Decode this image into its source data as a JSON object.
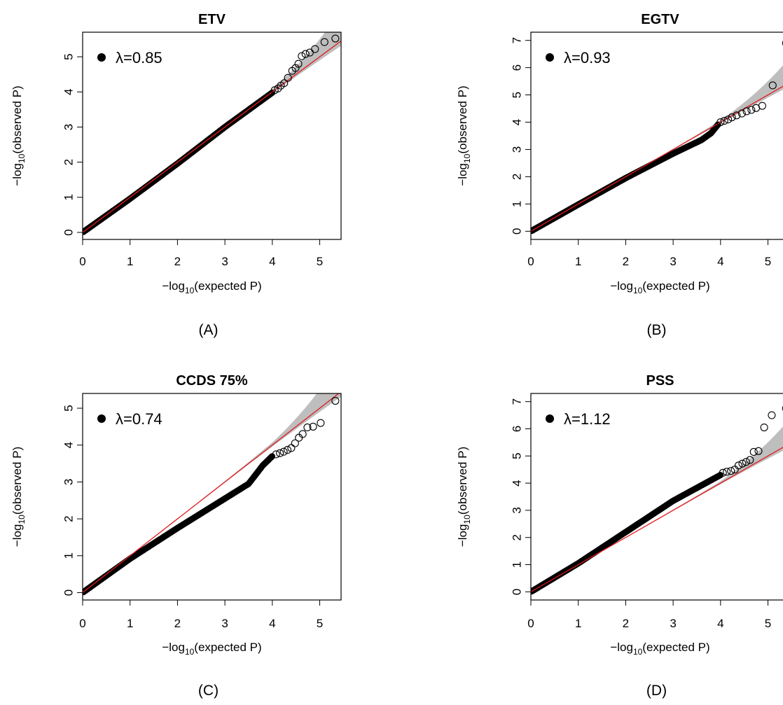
{
  "figure": {
    "panels": [
      {
        "id": "A",
        "title": "ETV",
        "lambda_text": "λ=0.85",
        "caption": "(A)"
      },
      {
        "id": "B",
        "title": "EGTV",
        "lambda_text": "λ=0.93",
        "caption": "(B)"
      },
      {
        "id": "C",
        "title": "CCDS 75%",
        "lambda_text": "λ=0.74",
        "caption": "(C)"
      },
      {
        "id": "D",
        "title": "PSS",
        "lambda_text": "λ=1.12",
        "caption": "(D)"
      }
    ],
    "axis_labels": {
      "x": "−log10(expected P)",
      "y": "−log10(observed P)"
    }
  },
  "chart_data": [
    {
      "type": "scatter",
      "title": "ETV",
      "xlabel": "−log10(expected P)",
      "ylabel": "−log10(observed P)",
      "xlim": [
        0,
        5.45
      ],
      "ylim": [
        -0.2,
        5.7
      ],
      "xticks": [
        0,
        1,
        2,
        3,
        4,
        5
      ],
      "yticks": [
        0,
        1,
        2,
        3,
        4,
        5
      ],
      "lambda": 0.85,
      "legend": "λ=0.85",
      "colors": {
        "points": "#000000",
        "reference_line": "#e41a1c",
        "confidence_band": "#bebebe"
      },
      "bulk_curve": [
        [
          0,
          0
        ],
        [
          1,
          0.96
        ],
        [
          2,
          1.96
        ],
        [
          3,
          3.0
        ],
        [
          4,
          3.98
        ]
      ],
      "outlier_points": [
        [
          4.05,
          4.05
        ],
        [
          4.12,
          4.1
        ],
        [
          4.18,
          4.18
        ],
        [
          4.25,
          4.25
        ],
        [
          4.33,
          4.4
        ],
        [
          4.42,
          4.6
        ],
        [
          4.49,
          4.68
        ],
        [
          4.55,
          4.8
        ],
        [
          4.62,
          5.02
        ],
        [
          4.7,
          5.08
        ],
        [
          4.79,
          5.12
        ],
        [
          4.9,
          5.22
        ],
        [
          5.1,
          5.42
        ],
        [
          5.33,
          5.52
        ]
      ]
    },
    {
      "type": "scatter",
      "title": "EGTV",
      "xlabel": "−log10(expected P)",
      "ylabel": "−log10(observed P)",
      "xlim": [
        0,
        5.45
      ],
      "ylim": [
        -0.3,
        7.3
      ],
      "xticks": [
        0,
        1,
        2,
        3,
        4,
        5
      ],
      "yticks": [
        0,
        1,
        2,
        3,
        4,
        5,
        6,
        7
      ],
      "lambda": 0.93,
      "legend": "λ=0.93",
      "colors": {
        "points": "#000000",
        "reference_line": "#e41a1c",
        "confidence_band": "#bebebe"
      },
      "bulk_curve": [
        [
          0,
          0
        ],
        [
          1,
          0.98
        ],
        [
          2,
          1.95
        ],
        [
          3,
          2.85
        ],
        [
          3.6,
          3.35
        ],
        [
          3.8,
          3.6
        ],
        [
          3.95,
          3.92
        ]
      ],
      "outlier_points": [
        [
          4.0,
          4.0
        ],
        [
          4.08,
          4.05
        ],
        [
          4.16,
          4.1
        ],
        [
          4.24,
          4.18
        ],
        [
          4.34,
          4.25
        ],
        [
          4.45,
          4.32
        ],
        [
          4.55,
          4.4
        ],
        [
          4.65,
          4.45
        ],
        [
          4.75,
          4.52
        ],
        [
          4.88,
          4.6
        ],
        [
          5.1,
          5.35
        ],
        [
          5.38,
          6.9
        ]
      ]
    },
    {
      "type": "scatter",
      "title": "CCDS 75%",
      "xlabel": "−log10(expected P)",
      "ylabel": "−log10(observed P)",
      "xlim": [
        0,
        5.45
      ],
      "ylim": [
        -0.2,
        5.4
      ],
      "xticks": [
        0,
        1,
        2,
        3,
        4,
        5
      ],
      "yticks": [
        0,
        1,
        2,
        3,
        4,
        5
      ],
      "lambda": 0.74,
      "legend": "λ=0.74",
      "colors": {
        "points": "#000000",
        "reference_line": "#e41a1c",
        "confidence_band": "#bebebe"
      },
      "bulk_curve": [
        [
          0,
          0
        ],
        [
          1,
          0.92
        ],
        [
          2,
          1.75
        ],
        [
          3,
          2.55
        ],
        [
          3.5,
          2.95
        ],
        [
          3.8,
          3.45
        ],
        [
          4.0,
          3.7
        ]
      ],
      "outlier_points": [
        [
          4.08,
          3.75
        ],
        [
          4.16,
          3.78
        ],
        [
          4.24,
          3.82
        ],
        [
          4.32,
          3.87
        ],
        [
          4.4,
          3.92
        ],
        [
          4.48,
          4.05
        ],
        [
          4.56,
          4.2
        ],
        [
          4.64,
          4.3
        ],
        [
          4.74,
          4.48
        ],
        [
          4.86,
          4.5
        ],
        [
          5.02,
          4.6
        ],
        [
          5.33,
          5.2
        ]
      ]
    },
    {
      "type": "scatter",
      "title": "PSS",
      "xlabel": "−log10(expected P)",
      "ylabel": "−log10(observed P)",
      "xlim": [
        0,
        5.45
      ],
      "ylim": [
        -0.3,
        7.3
      ],
      "xticks": [
        0,
        1,
        2,
        3,
        4,
        5
      ],
      "yticks": [
        0,
        1,
        2,
        3,
        4,
        5,
        6,
        7
      ],
      "lambda": 1.12,
      "legend": "λ=1.12",
      "colors": {
        "points": "#000000",
        "reference_line": "#e41a1c",
        "confidence_band": "#bebebe"
      },
      "bulk_curve": [
        [
          0,
          0
        ],
        [
          1,
          1.05
        ],
        [
          2,
          2.2
        ],
        [
          3,
          3.35
        ],
        [
          4,
          4.3
        ]
      ],
      "outlier_points": [
        [
          4.05,
          4.38
        ],
        [
          4.13,
          4.42
        ],
        [
          4.22,
          4.45
        ],
        [
          4.3,
          4.5
        ],
        [
          4.38,
          4.65
        ],
        [
          4.46,
          4.72
        ],
        [
          4.54,
          4.78
        ],
        [
          4.62,
          4.85
        ],
        [
          4.7,
          5.15
        ],
        [
          4.8,
          5.18
        ],
        [
          4.92,
          6.05
        ],
        [
          5.08,
          6.5
        ],
        [
          5.38,
          6.75
        ]
      ]
    }
  ]
}
